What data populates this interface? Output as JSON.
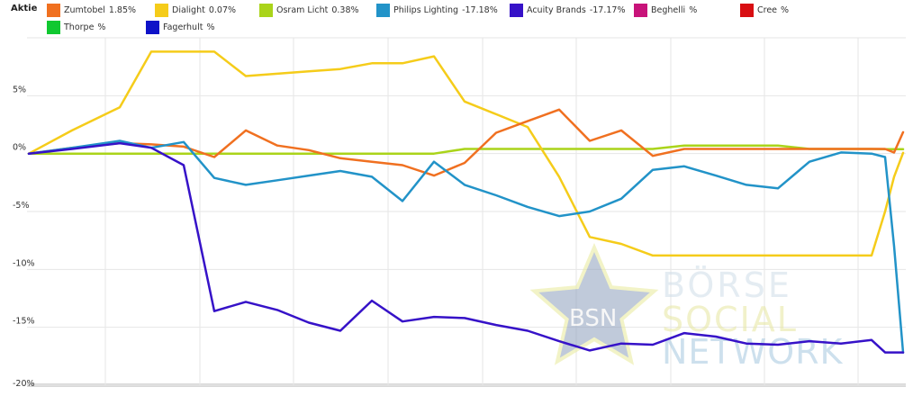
{
  "chart_data": {
    "type": "line",
    "legend_title": "Aktie",
    "legend_placement": "top",
    "grid": true,
    "ylim": [
      -20,
      10
    ],
    "yticks": [
      {
        "value": 5,
        "label": "5%"
      },
      {
        "value": 0,
        "label": "0%"
      },
      {
        "value": -5,
        "label": "-5%"
      },
      {
        "value": -10,
        "label": "-10%"
      },
      {
        "value": -15,
        "label": "-15%"
      },
      {
        "value": -20,
        "label": "-20%"
      }
    ],
    "x": [
      0,
      1,
      2,
      3,
      4,
      5,
      6,
      7,
      8,
      9,
      10,
      11,
      12,
      13,
      14,
      15,
      16,
      17,
      18,
      19,
      20,
      21,
      22,
      23,
      24,
      25,
      26,
      27,
      28,
      29,
      30,
      31,
      32,
      33,
      34,
      35,
      36,
      37,
      38,
      39,
      40,
      41,
      42,
      43,
      44,
      45,
      46,
      47,
      48,
      49,
      50,
      51,
      52,
      53,
      54,
      55,
      56,
      57,
      58,
      59,
      60,
      61,
      62,
      63,
      64,
      65,
      66,
      67,
      68,
      69,
      70,
      71,
      72,
      73,
      74,
      75,
      76,
      77,
      78,
      79,
      80,
      81,
      82,
      83,
      84,
      85,
      86,
      87,
      88,
      89,
      90,
      91,
      92,
      93,
      94,
      95,
      96,
      97,
      98,
      99,
      100,
      101,
      102,
      103,
      104,
      105,
      106,
      107,
      108,
      109,
      110,
      111,
      112,
      113,
      114,
      115,
      116,
      117,
      118,
      119,
      120,
      121,
      122,
      123,
      124,
      125,
      126,
      127,
      128,
      129,
      130,
      131,
      132,
      133,
      134,
      135,
      136,
      137,
      138,
      139,
      140,
      141,
      142,
      143,
      144,
      145,
      146,
      147,
      148,
      149,
      150,
      151,
      152,
      153,
      154,
      155,
      156,
      157,
      158,
      159,
      160,
      161,
      162,
      163,
      164,
      165,
      166,
      167,
      168,
      169,
      170,
      171,
      172,
      173,
      174,
      175,
      176,
      177,
      178,
      179,
      180,
      181,
      182,
      183,
      184,
      185,
      186,
      187,
      188,
      189,
      190,
      191,
      192,
      193,
      194,
      195,
      196,
      197,
      198,
      199,
      200,
      201,
      202,
      203,
      204,
      205,
      206,
      207,
      208,
      209,
      210,
      211,
      212,
      213,
      214,
      215,
      216,
      217,
      218,
      219,
      220,
      221,
      222,
      223,
      224,
      225,
      226,
      227,
      228,
      229,
      230,
      231,
      232,
      233,
      234,
      235,
      236,
      237,
      238,
      239,
      240,
      241,
      242,
      243,
      244,
      245,
      246,
      247,
      248,
      249,
      250,
      251,
      252,
      253,
      254,
      255,
      256,
      257,
      258,
      259,
      260,
      261,
      262,
      263,
      264,
      265,
      266,
      267,
      268,
      269,
      270,
      271,
      272,
      273,
      274,
      275,
      276,
      277,
      278,
      279,
      280,
      281,
      282,
      283,
      284,
      285,
      286,
      287,
      288,
      289,
      290,
      291,
      292,
      293,
      294,
      295,
      296,
      297,
      298,
      299,
      300,
      301,
      302,
      303,
      304,
      305,
      306,
      307,
      308,
      309,
      310,
      311,
      312,
      313,
      314,
      315,
      316,
      317,
      318,
      319,
      320,
      321,
      322,
      323,
      324,
      325,
      326,
      327,
      328,
      329,
      330,
      331,
      332,
      333,
      334,
      335,
      336,
      337,
      338,
      339,
      340,
      341,
      342,
      343,
      344,
      345,
      346,
      347,
      348,
      349,
      350,
      351,
      352,
      353,
      354,
      355,
      356,
      357,
      358,
      359,
      360,
      361,
      362,
      363,
      364,
      365,
      366,
      367,
      368,
      369,
      370,
      371,
      372,
      373,
      374,
      375,
      376,
      377,
      378,
      379,
      380,
      381,
      382,
      383,
      384,
      385,
      386,
      387,
      388,
      389,
      390,
      391,
      392,
      393,
      394,
      395,
      396,
      397,
      398,
      399,
      400,
      401,
      402,
      403,
      404,
      405,
      406,
      407,
      408,
      409,
      410,
      411,
      412,
      413,
      414,
      415,
      416,
      417,
      418,
      419,
      420,
      421,
      422,
      423,
      424,
      425,
      426,
      427,
      428,
      429,
      430,
      431,
      432,
      433,
      434,
      435,
      436,
      437,
      438,
      439,
      440,
      441,
      442,
      443,
      444,
      445,
      446,
      447,
      448,
      449,
      450,
      451,
      452,
      453,
      454,
      455,
      456,
      457,
      458,
      459,
      460,
      461,
      462,
      463,
      464,
      465,
      466,
      467,
      468,
      469,
      470,
      471,
      472,
      473,
      474,
      475,
      476,
      477,
      478,
      479,
      480,
      481,
      482,
      483,
      484,
      485,
      486,
      487,
      488,
      489,
      490,
      491,
      492,
      493,
      494,
      495,
      496,
      497,
      498,
      499,
      500,
      501,
      502,
      503,
      504,
      505,
      506,
      507,
      508,
      509,
      510,
      511,
      512,
      513,
      514,
      515,
      516,
      517,
      518,
      519,
      520,
      521,
      522,
      523,
      524,
      525,
      526,
      527,
      528,
      529,
      530,
      531,
      532,
      533,
      534,
      535,
      536,
      537,
      538,
      539,
      540,
      541,
      542,
      543,
      544,
      545,
      546,
      547,
      548,
      549,
      550,
      551,
      552,
      553,
      554,
      555,
      556,
      557,
      558,
      559,
      560,
      561,
      562,
      563,
      564,
      565,
      566,
      567,
      568,
      569,
      570,
      571,
      572,
      573,
      574,
      575,
      576,
      577,
      578,
      579,
      580,
      581,
      582,
      583,
      584,
      585,
      586,
      587,
      588,
      589,
      590,
      591,
      592,
      593,
      594,
      595,
      596,
      597,
      598,
      599,
      600,
      601,
      602,
      603,
      604,
      605,
      606,
      607,
      608,
      609,
      610,
      611,
      612,
      613,
      614,
      615,
      616,
      617,
      618,
      619,
      620,
      621,
      622,
      623,
      624,
      625,
      626,
      627,
      628,
      629,
      630,
      631,
      632,
      633,
      634,
      635,
      636,
      637,
      638,
      639,
      640,
      641,
      642,
      643,
      644,
      645,
      646,
      647,
      648,
      649,
      650,
      651,
      652,
      653,
      654,
      655,
      656,
      657,
      658,
      659,
      660,
      661,
      662,
      663,
      664,
      665,
      666,
      667,
      668,
      669,
      670,
      671,
      672,
      673,
      674,
      675,
      676,
      677,
      678,
      679,
      680,
      681,
      682,
      683,
      684,
      685,
      686,
      687,
      688,
      689,
      690,
      691,
      692,
      693,
      694,
      695,
      696,
      697,
      698,
      699,
      700,
      701,
      702,
      703,
      704,
      705,
      706,
      707,
      708,
      709,
      710,
      711,
      712,
      713,
      714,
      715,
      716,
      717,
      718,
      719,
      720,
      721,
      722,
      723,
      724,
      725,
      726,
      727,
      728,
      729,
      730,
      731,
      732,
      733,
      734,
      735,
      736,
      737,
      738,
      739,
      740,
      741,
      742,
      743,
      744,
      745,
      746,
      747,
      748,
      749,
      750,
      751,
      752,
      753,
      754,
      755,
      756,
      757,
      758,
      759,
      760,
      761,
      762,
      763,
      764,
      765,
      766,
      767,
      768,
      769,
      770,
      771,
      772,
      773,
      774,
      775,
      776,
      777,
      778,
      779,
      780,
      781,
      782,
      783,
      784,
      785,
      786,
      787,
      788,
      789,
      790,
      791,
      792,
      793,
      794,
      795,
      796,
      797,
      798,
      799,
      800,
      801,
      802,
      803,
      804,
      805,
      806,
      807,
      808,
      809,
      810,
      811,
      812,
      813,
      814,
      815,
      816,
      817,
      818,
      819,
      820,
      821,
      822,
      823,
      824,
      825,
      826,
      827,
      828,
      829,
      830,
      831,
      832,
      833,
      834,
      835,
      836,
      837,
      838,
      839,
      840,
      841,
      842,
      843,
      844,
      845,
      846,
      847,
      848,
      849,
      850,
      851,
      852,
      853,
      854,
      855,
      856,
      857,
      858,
      859,
      860,
      861,
      862,
      863,
      864,
      865,
      866,
      867,
      868,
      869,
      870,
      871,
      872,
      873,
      874,
      875,
      876,
      877,
      878,
      879,
      880,
      881,
      882,
      883,
      884,
      885,
      886,
      887,
      888,
      889,
      890,
      891,
      892,
      893,
      894,
      895,
      896,
      897,
      898,
      899,
      900,
      901,
      902,
      903,
      904,
      905,
      906,
      907,
      908,
      909,
      910,
      911,
      912,
      913,
      914,
      915,
      916,
      917,
      918,
      919,
      920,
      921,
      922,
      923,
      924,
      925,
      926,
      927,
      928,
      929,
      930,
      931,
      932,
      933,
      934,
      935,
      936,
      937,
      938,
      939,
      940,
      941,
      942,
      943,
      944,
      945,
      946,
      947,
      948,
      949,
      950,
      951,
      952,
      953,
      954,
      955,
      956,
      957,
      958,
      959,
      960,
      961,
      962,
      963,
      964,
      965,
      966,
      967,
      968,
      969,
      970,
      971,
      972,
      973,
      974,
      975,
      976,
      977,
      978,
      979,
      980,
      981,
      982,
      983,
      984,
      985,
      986,
      987,
      988,
      989,
      990,
      991,
      992,
      993,
      994,
      995,
      996,
      997,
      998,
      999,
      1000
    ],
    "series": []
  }
}
